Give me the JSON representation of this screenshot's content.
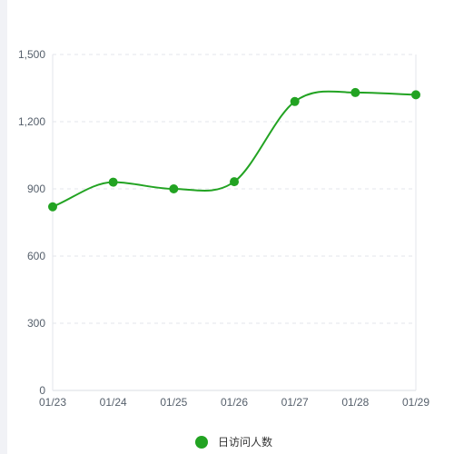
{
  "chart_data": {
    "type": "line",
    "categories": [
      "01/23",
      "01/24",
      "01/25",
      "01/26",
      "01/27",
      "01/28",
      "01/29"
    ],
    "series": [
      {
        "name": "日访问人数",
        "values": [
          820,
          930,
          900,
          932,
          1290,
          1330,
          1320
        ],
        "color": "#22a322"
      }
    ],
    "ylim": [
      0,
      1500
    ],
    "yticks": [
      "0",
      "300",
      "600",
      "900",
      "1,200",
      "1,500"
    ],
    "ytick_values": [
      0,
      300,
      600,
      900,
      1200,
      1500
    ],
    "smooth": true,
    "grid": "horizontal dashed",
    "legend_position": "bottom-center"
  }
}
